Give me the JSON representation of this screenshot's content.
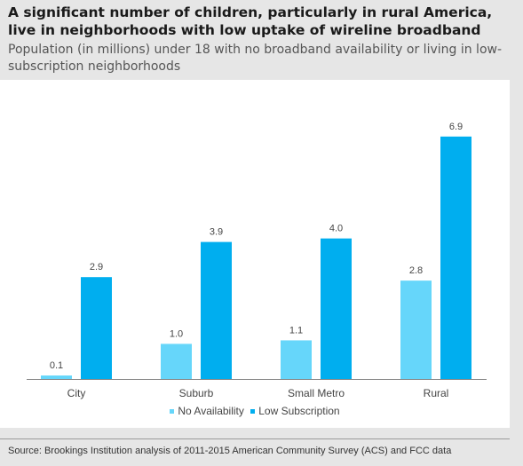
{
  "title": "A significant number of children, particularly in rural America, live in neighborhoods with low uptake of wireline broadband",
  "subtitle": "Population (in millions) under 18 with no broadband availability or living in low-subscription neighborhoods",
  "source": "Source: Brookings Institution analysis of 2011-2015 American Community Survey (ACS) and FCC data",
  "colors": {
    "no_availability": "#66d6fa",
    "low_subscription": "#00aeef"
  },
  "chart_data": {
    "type": "bar",
    "title": "A significant number of children, particularly in rural America, live in neighborhoods with low uptake of wireline broadband",
    "subtitle": "Population (in millions) under 18 with no broadband availability or living in low-subscription neighborhoods",
    "categories": [
      "City",
      "Suburb",
      "Small Metro",
      "Rural"
    ],
    "series": [
      {
        "name": "No Availability",
        "values": [
          0.1,
          1.0,
          1.1,
          2.8
        ]
      },
      {
        "name": "Low Subscription",
        "values": [
          2.9,
          3.9,
          4.0,
          6.9
        ]
      }
    ],
    "value_labels": [
      [
        "0.1",
        "1.0",
        "1.1",
        "2.8"
      ],
      [
        "2.9",
        "3.9",
        "4.0",
        "6.9"
      ]
    ],
    "ylim": [
      0,
      7.3
    ],
    "grid": false,
    "legend_position": "bottom-center"
  }
}
